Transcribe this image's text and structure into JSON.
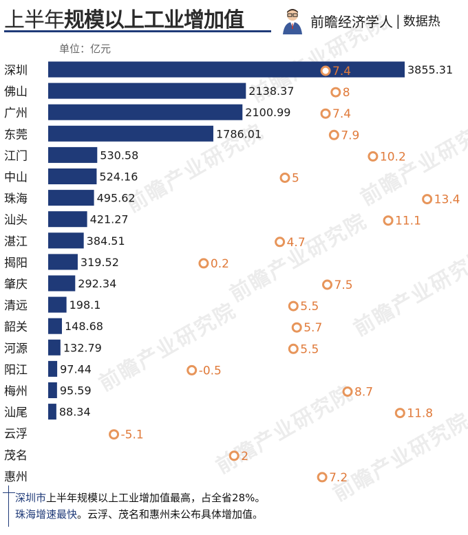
{
  "header": {
    "title_plain": "上半年",
    "title_bold": "规模以上工业增加值",
    "brand_name": "前瞻经济学人",
    "brand_sep": "|",
    "brand_sub": "数据热"
  },
  "unit_label": "单位：亿元",
  "watermark_text": "前瞻产业研究院",
  "note": {
    "line1_a": "深圳市",
    "line1_b": "上半年规模以上工业增加值最高",
    "line1_c": "，占全省28%。",
    "line2_a": "珠海增速最快",
    "line2_b": "。云浮、茂名和惠州未公布具体增加值。"
  },
  "colors": {
    "bar": "#1f3a78",
    "point": "#e7955a",
    "point_text": "#e07a3a",
    "value_text": "#1a1a1a"
  },
  "chart_data": {
    "type": "bar",
    "orientation": "horizontal",
    "categories": [
      "深圳",
      "佛山",
      "广州",
      "东莞",
      "江门",
      "中山",
      "珠海",
      "汕头",
      "湛江",
      "揭阳",
      "肇庆",
      "清远",
      "韶关",
      "河源",
      "阳江",
      "梅州",
      "汕尾",
      "云浮",
      "茂名",
      "惠州"
    ],
    "series": [
      {
        "values": [
          3855.31,
          2138.37,
          2100.99,
          1786.01,
          530.58,
          524.16,
          495.62,
          421.27,
          384.51,
          319.52,
          292.34,
          198.1,
          148.68,
          132.79,
          97.44,
          95.59,
          88.34,
          null,
          null,
          null
        ],
        "labels": [
          "3855.31",
          "2138.37",
          "2100.99",
          "1786.01",
          "530.58",
          "524.16",
          "495.62",
          "421.27",
          "384.51",
          "319.52",
          "292.34",
          "198.1",
          "148.68",
          "132.79",
          "97.44",
          "95.59",
          "88.34",
          "",
          "",
          ""
        ]
      },
      {
        "type": "scatter",
        "values": [
          7.4,
          8,
          7.4,
          7.9,
          10.2,
          5,
          13.4,
          11.1,
          4.7,
          0.2,
          7.5,
          5.5,
          5.7,
          5.5,
          -0.5,
          8.7,
          11.8,
          -5.1,
          2,
          7.2
        ],
        "labels": [
          "7.4",
          "8",
          "7.4",
          "7.9",
          "10.2",
          "5",
          "13.4",
          "11.1",
          "4.7",
          "0.2",
          "7.5",
          "5.5",
          "5.7",
          "5.5",
          "-0.5",
          "8.7",
          "11.8",
          "-5.1",
          "2",
          "7.2"
        ]
      }
    ],
    "unit": "亿元"
  }
}
